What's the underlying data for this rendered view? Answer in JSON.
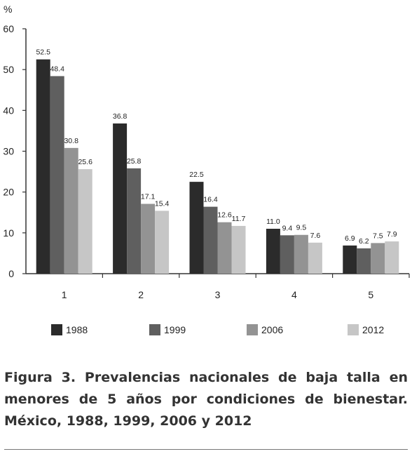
{
  "chart_data": {
    "type": "bar",
    "y_unit": "%",
    "categories": [
      "1",
      "2",
      "3",
      "4",
      "5"
    ],
    "series": [
      {
        "name": "1988",
        "color": "#2b2b2b",
        "values": [
          52.5,
          36.8,
          22.5,
          11.0,
          6.9
        ],
        "labels": [
          "52.5",
          "36.8",
          "22.5",
          "11.0",
          "6.9"
        ]
      },
      {
        "name": "1999",
        "color": "#5f5f5f",
        "values": [
          48.4,
          25.8,
          16.4,
          9.4,
          6.2
        ],
        "labels": [
          "48.4",
          "25.8",
          "16.4",
          "9.4",
          "6.2"
        ]
      },
      {
        "name": "2006",
        "color": "#939393",
        "values": [
          30.8,
          17.1,
          12.6,
          9.5,
          7.5
        ],
        "labels": [
          "30.8",
          "17.1",
          "12.6",
          "9.5",
          "7.5"
        ]
      },
      {
        "name": "2012",
        "color": "#c6c6c6",
        "values": [
          25.6,
          15.4,
          11.7,
          7.6,
          7.9
        ],
        "labels": [
          "25.6",
          "15.4",
          "11.7",
          "7.6",
          "7.9"
        ]
      }
    ],
    "ylim": [
      0,
      60
    ],
    "yticks": [
      0,
      10,
      20,
      30,
      40,
      50,
      60
    ],
    "grid": false,
    "legend_position": "bottom"
  },
  "caption": "Figura 3. Prevalencias nacionales de baja talla en menores de 5 años por condiciones de bienestar. México, 1988, 1999, 2006 y 2012"
}
